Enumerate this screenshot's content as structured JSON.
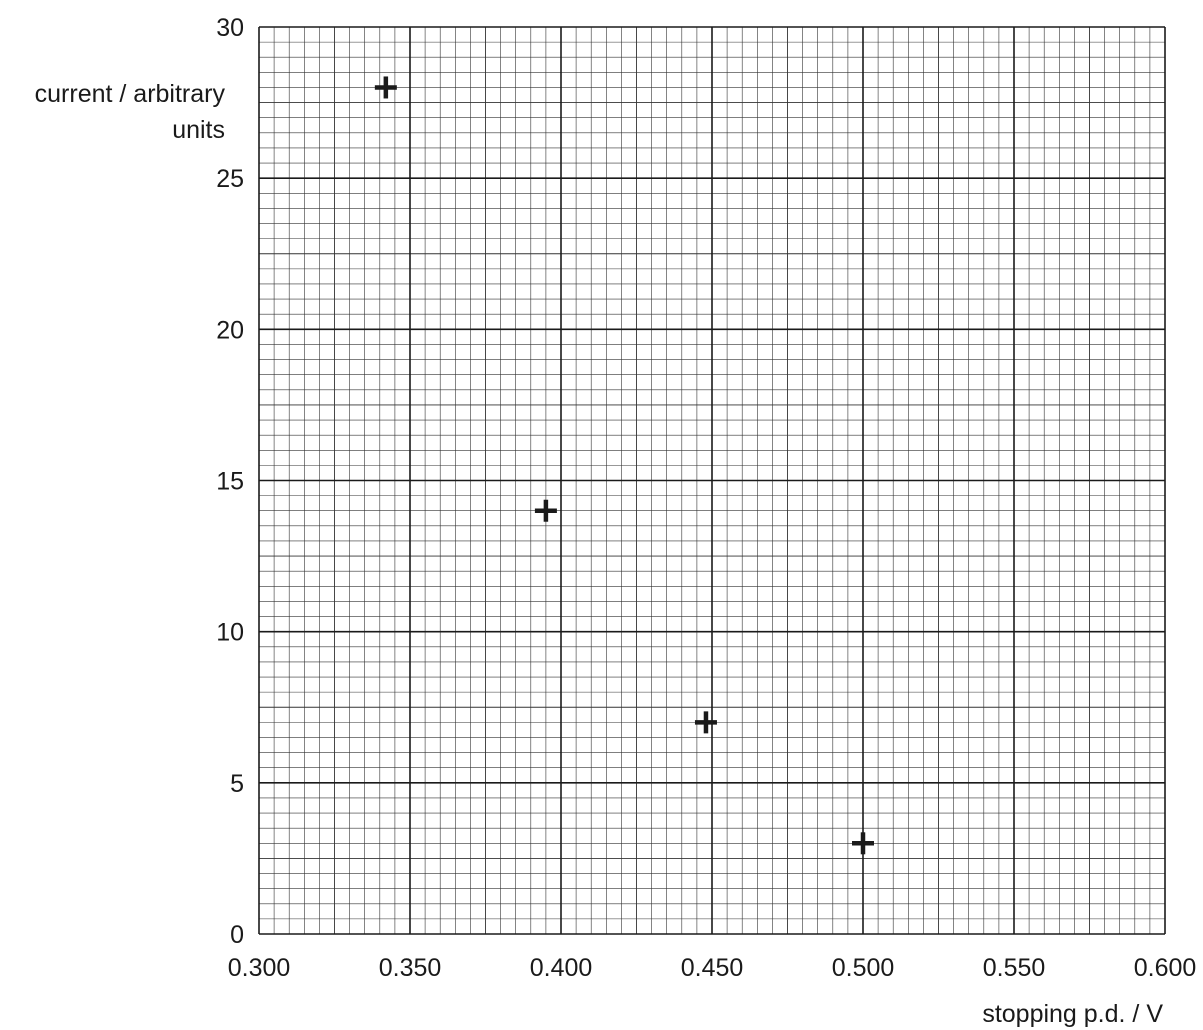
{
  "chart_data": {
    "type": "scatter",
    "title": "",
    "ylabel_line1": "current / arbitrary",
    "ylabel_line2": "units",
    "xlabel": "stopping p.d. / V",
    "xlim": [
      0.3,
      0.6
    ],
    "ylim": [
      0,
      30
    ],
    "x_ticks": [
      "0.300",
      "0.350",
      "0.400",
      "0.450",
      "0.500",
      "0.550",
      "0.600"
    ],
    "y_ticks": [
      "0",
      "5",
      "10",
      "15",
      "20",
      "25",
      "30"
    ],
    "grid": true,
    "marker": "cross",
    "points": [
      {
        "x": 0.342,
        "y": 28
      },
      {
        "x": 0.395,
        "y": 14
      },
      {
        "x": 0.448,
        "y": 7
      },
      {
        "x": 0.5,
        "y": 3
      }
    ],
    "colors": {
      "major_grid": "#1a1a1a",
      "minor_grid": "#333333",
      "marker": "#1a1a1a"
    }
  }
}
